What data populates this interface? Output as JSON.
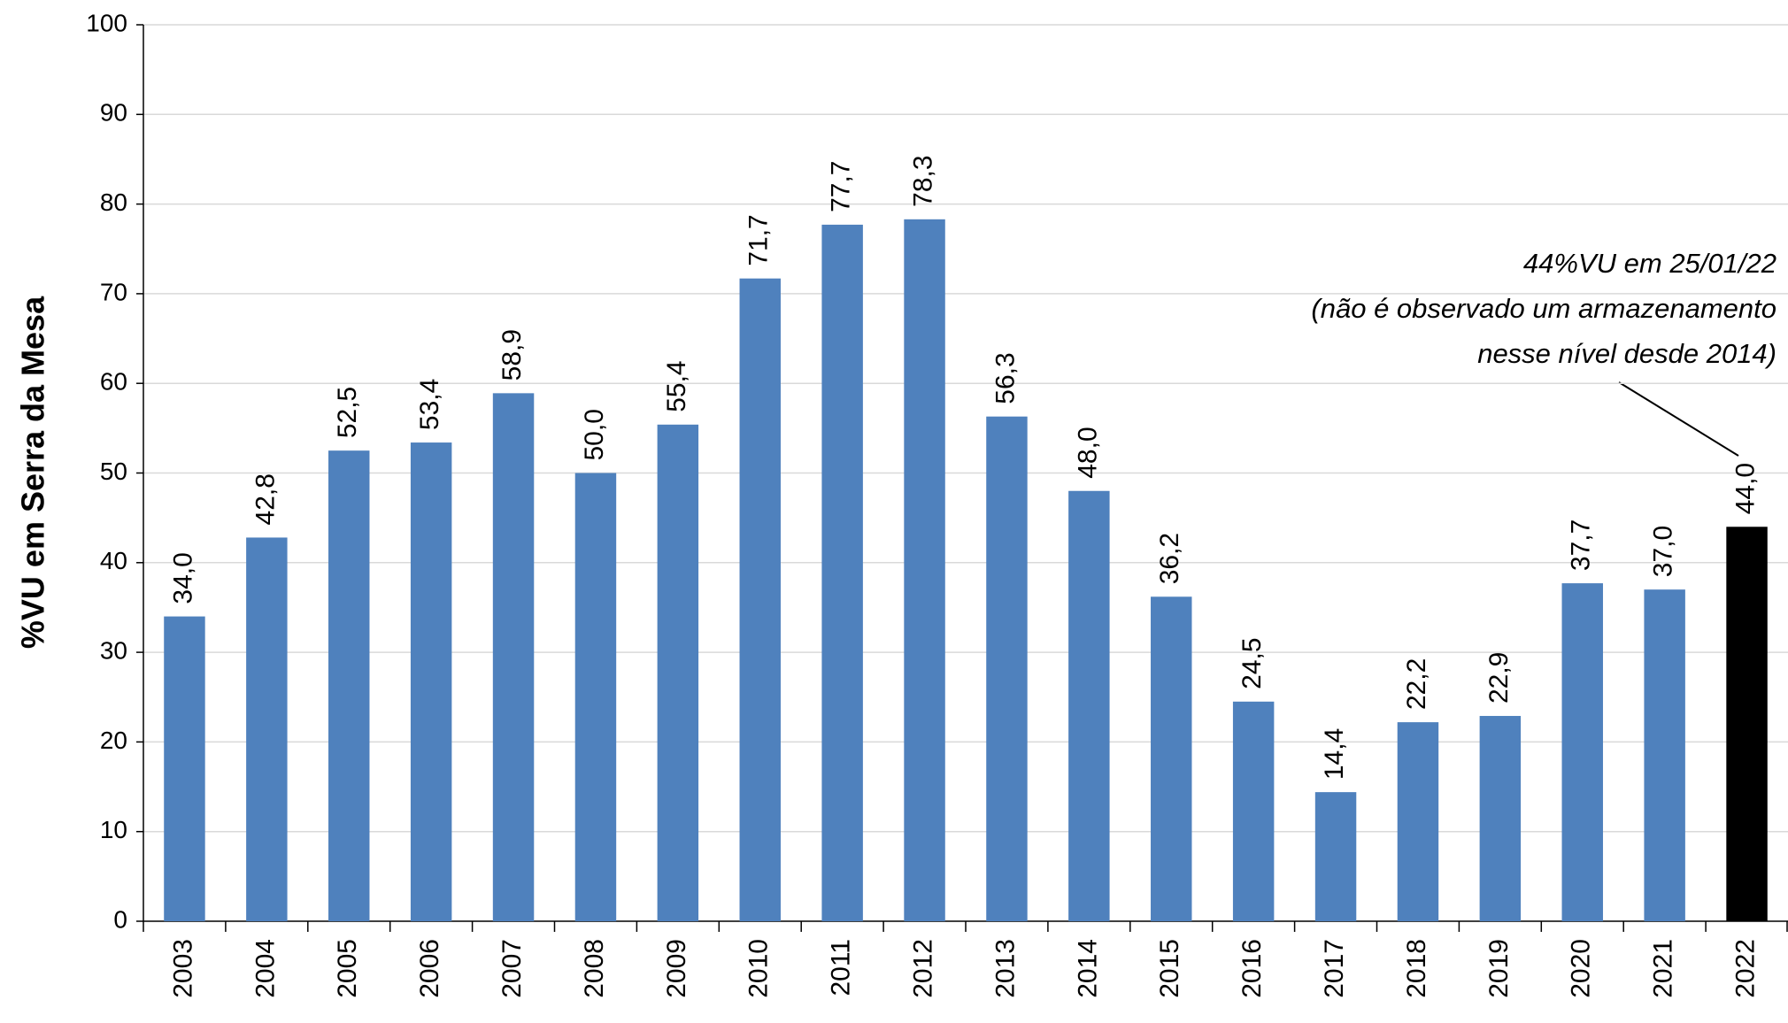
{
  "chart_data": {
    "type": "bar",
    "y_label": "%VU em Serra da Mesa",
    "categories": [
      "2003",
      "2004",
      "2005",
      "2006",
      "2007",
      "2008",
      "2009",
      "2010",
      "2011",
      "2012",
      "2013",
      "2014",
      "2015",
      "2016",
      "2017",
      "2018",
      "2019",
      "2020",
      "2021",
      "2022"
    ],
    "values": [
      34.0,
      42.8,
      52.5,
      53.4,
      58.9,
      50.0,
      55.4,
      71.7,
      77.7,
      78.3,
      56.3,
      48.0,
      36.2,
      24.5,
      14.4,
      22.2,
      22.9,
      37.7,
      37.0,
      44.0
    ],
    "value_labels": [
      "34,0",
      "42,8",
      "52,5",
      "53,4",
      "58,9",
      "50,0",
      "55,4",
      "71,7",
      "77,7",
      "78,3",
      "56,3",
      "48,0",
      "36,2",
      "24,5",
      "14,4",
      "22,2",
      "22,9",
      "37,7",
      "37,0",
      "44,0"
    ],
    "colors": [
      "#4f81bd",
      "#4f81bd",
      "#4f81bd",
      "#4f81bd",
      "#4f81bd",
      "#4f81bd",
      "#4f81bd",
      "#4f81bd",
      "#4f81bd",
      "#4f81bd",
      "#4f81bd",
      "#4f81bd",
      "#4f81bd",
      "#4f81bd",
      "#4f81bd",
      "#4f81bd",
      "#4f81bd",
      "#4f81bd",
      "#4f81bd",
      "#000000"
    ],
    "ylim": [
      0,
      100
    ],
    "yticks": [
      0,
      10,
      20,
      30,
      40,
      50,
      60,
      70,
      80,
      90,
      100
    ],
    "grid": true,
    "annotation": [
      "44%VU em 25/01/22",
      "(não é observado um armazenamento",
      "nesse nível desde 2014)"
    ]
  }
}
